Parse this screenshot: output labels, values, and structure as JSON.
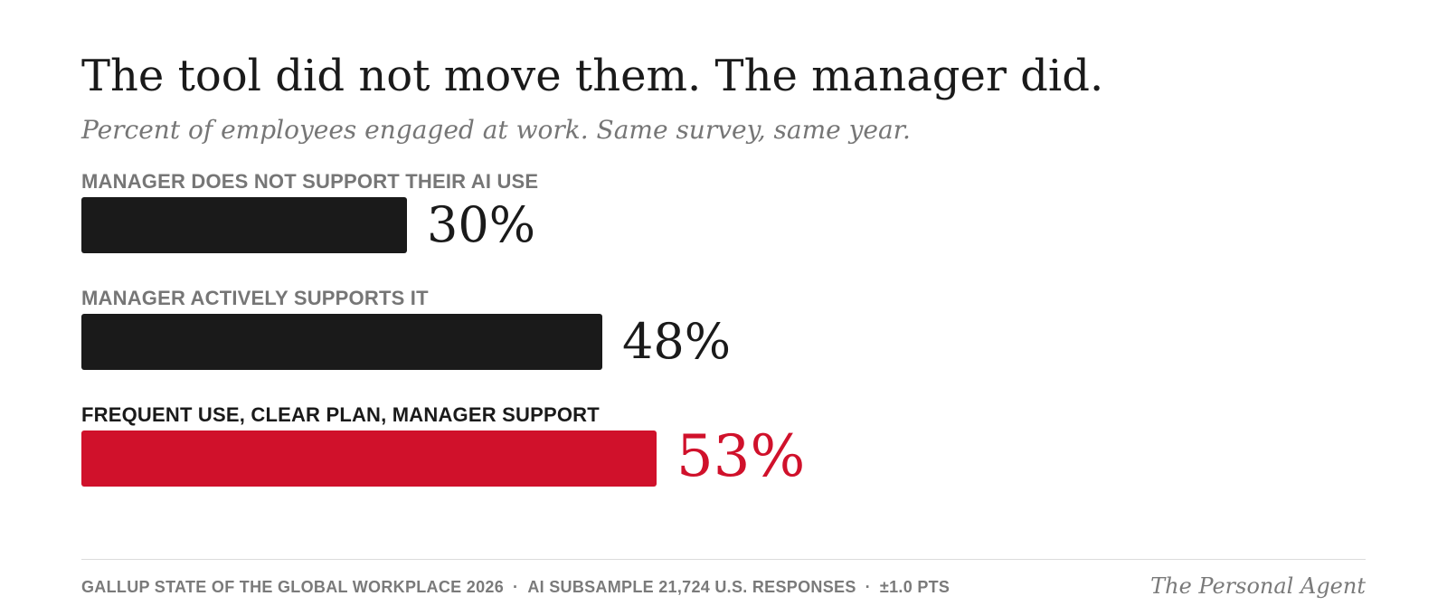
{
  "chart_data": {
    "type": "bar",
    "orientation": "horizontal",
    "title": "The tool did not move them. The manager did.",
    "subtitle": "Percent of employees engaged at work. Same survey, same year.",
    "unit": "%",
    "categories": [
      "MANAGER DOES NOT SUPPORT THEIR AI USE",
      "MANAGER ACTIVELY SUPPORTS IT",
      "FREQUENT USE, CLEAR PLAN, MANAGER SUPPORT"
    ],
    "values": [
      30,
      48,
      53
    ],
    "value_labels": [
      "30%",
      "48%",
      "53%"
    ],
    "highlight_index": 2,
    "colors": {
      "bar": "#1a1a1a",
      "highlight": "#d0112b",
      "label": "#767676",
      "highlight_label": "#1a1a1a"
    },
    "xlim": [
      0,
      100
    ],
    "grid": false,
    "legend": "none"
  },
  "footer": {
    "source_parts": [
      "GALLUP STATE OF THE GLOBAL WORKPLACE 2026",
      "AI SUBSAMPLE 21,724 U.S. RESPONSES",
      "±1.0 PTS"
    ],
    "separator": "·",
    "brand": "The Personal Agent"
  }
}
